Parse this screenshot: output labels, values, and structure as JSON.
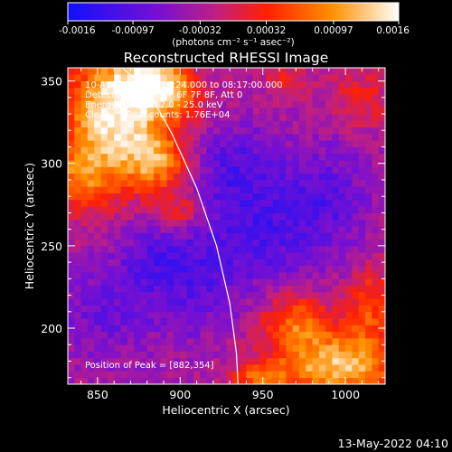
{
  "colorbar": {
    "tick_labels": [
      "-0.0016",
      "-0.00097",
      "-0.00032",
      "0.00032",
      "0.00097",
      "0.0016"
    ],
    "tick_values": [
      -0.0016,
      -0.00097,
      -0.00032,
      0.00032,
      0.00097,
      0.0016
    ],
    "range": [
      -0.0016,
      0.0016
    ],
    "unit_label": "(photons cm⁻² s⁻¹ asec⁻²)",
    "colors": [
      "#1010ff",
      "#7a10d0",
      "#c02080",
      "#ff2000",
      "#ff9000",
      "#ffffff"
    ]
  },
  "chart_data": {
    "type": "heatmap",
    "title": "Reconstructed RHESSI Image",
    "xlabel": "Heliocentric X (arcsec)",
    "ylabel": "Heliocentric Y (arcsec)",
    "xlim": [
      832,
      1024
    ],
    "ylim": [
      166,
      358
    ],
    "x_ticks": [
      850,
      900,
      950,
      1000
    ],
    "y_ticks": [
      200,
      250,
      300,
      350
    ],
    "annotations": [
      "10-Aug-2011 08:14:24.000 to 08:17:00.000",
      "Detectors: 3F 4F 5F 6F 7F 8F, Att 0",
      "Energy Range: 12.0 - 25.0 keV",
      "Clean     Total counts: 1.76E+04"
    ],
    "peak_label": "Position of Peak = [882,354]",
    "peak": [
      882,
      354
    ],
    "limb": [
      [
        865,
        358
      ],
      [
        880,
        345
      ],
      [
        895,
        318
      ],
      [
        910,
        285
      ],
      [
        922,
        250
      ],
      [
        930,
        215
      ],
      [
        934,
        185
      ],
      [
        935,
        166
      ]
    ],
    "hotspots": [
      {
        "x": 862,
        "y": 330,
        "sx": 22,
        "sy": 28,
        "amp": 0.0019
      },
      {
        "x": 885,
        "y": 350,
        "sx": 14,
        "sy": 10,
        "amp": 0.0012
      },
      {
        "x": 888,
        "y": 300,
        "sx": 14,
        "sy": 12,
        "amp": 0.001
      },
      {
        "x": 840,
        "y": 292,
        "sx": 12,
        "sy": 14,
        "amp": 0.0009
      },
      {
        "x": 900,
        "y": 270,
        "sx": 10,
        "sy": 8,
        "amp": 0.0007
      },
      {
        "x": 995,
        "y": 178,
        "sx": 26,
        "sy": 14,
        "amp": 0.0016
      },
      {
        "x": 970,
        "y": 205,
        "sx": 14,
        "sy": 12,
        "amp": 0.001
      },
      {
        "x": 1015,
        "y": 215,
        "sx": 10,
        "sy": 16,
        "amp": 0.0008
      },
      {
        "x": 900,
        "y": 340,
        "sx": 12,
        "sy": 10,
        "amp": 0.0005
      },
      {
        "x": 965,
        "y": 350,
        "sx": 10,
        "sy": 8,
        "amp": 0.0005
      },
      {
        "x": 1010,
        "y": 340,
        "sx": 12,
        "sy": 14,
        "amp": 0.0005
      },
      {
        "x": 948,
        "y": 170,
        "sx": 12,
        "sy": 6,
        "amp": 0.0009
      }
    ],
    "coldspots": [
      {
        "x": 950,
        "y": 260,
        "sx": 25,
        "sy": 25,
        "amp": -0.0007
      },
      {
        "x": 930,
        "y": 300,
        "sx": 20,
        "sy": 18,
        "amp": -0.0006
      },
      {
        "x": 905,
        "y": 230,
        "sx": 20,
        "sy": 25,
        "amp": -0.0006
      },
      {
        "x": 990,
        "y": 280,
        "sx": 18,
        "sy": 25,
        "amp": -0.0005
      },
      {
        "x": 855,
        "y": 210,
        "sx": 20,
        "sy": 20,
        "amp": -0.0005
      },
      {
        "x": 880,
        "y": 245,
        "sx": 15,
        "sy": 15,
        "amp": -0.0004
      }
    ]
  },
  "footer": {
    "date": "13-May-2022 04:10"
  }
}
